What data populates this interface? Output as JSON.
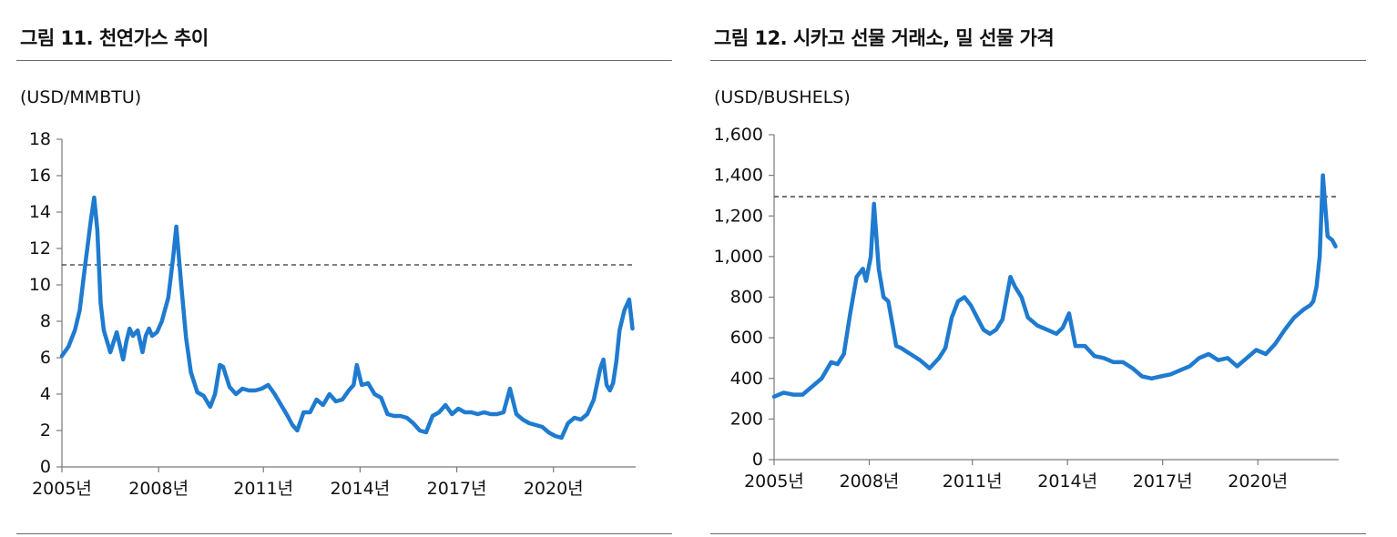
{
  "charts": [
    {
      "title": "그림 11. 천연가스 추이",
      "unit_label": "(USD/MMBTU)",
      "y_ticks": [
        "18",
        "16",
        "14",
        "12",
        "10",
        "8",
        "6",
        "4",
        "2",
        "0"
      ],
      "x_ticks": [
        "2005년",
        "2008년",
        "2011년",
        "2014년",
        "2017년",
        "2020년"
      ]
    },
    {
      "title": "그림 12. 시카고 선물 거래소, 밀 선물 가격",
      "unit_label": "(USD/BUSHELS)",
      "y_ticks": [
        "1,600",
        "1,400",
        "1,200",
        "1,000",
        "800",
        "600",
        "400",
        "200",
        "0"
      ],
      "x_ticks": [
        "2005년",
        "2008년",
        "2011년",
        "2014년",
        "2017년",
        "2020년"
      ]
    }
  ],
  "line_color": "#1f7bcf",
  "chart_data": [
    {
      "type": "line",
      "title": "그림 11. 천연가스 추이",
      "xlabel": "",
      "ylabel": "(USD/MMBTU)",
      "xlim": [
        2005.0,
        2022.8
      ],
      "ylim": [
        0,
        18
      ],
      "reference_line": 11.1,
      "grid": false,
      "series": [
        {
          "x": [
            2005.0,
            2005.2,
            2005.4,
            2005.55,
            2005.7,
            2005.9,
            2006.0,
            2006.1,
            2006.2,
            2006.3,
            2006.5,
            2006.7,
            2006.9,
            2007.0,
            2007.1,
            2007.2,
            2007.35,
            2007.5,
            2007.6,
            2007.7,
            2007.8,
            2007.95,
            2008.1,
            2008.3,
            2008.45,
            2008.55,
            2008.7,
            2008.85,
            2009.0,
            2009.2,
            2009.4,
            2009.6,
            2009.75,
            2009.9,
            2010.0,
            2010.2,
            2010.4,
            2010.6,
            2010.8,
            2011.0,
            2011.2,
            2011.4,
            2011.6,
            2011.8,
            2012.0,
            2012.15,
            2012.3,
            2012.5,
            2012.7,
            2012.9,
            2013.1,
            2013.3,
            2013.5,
            2013.7,
            2013.9,
            2014.05,
            2014.15,
            2014.3,
            2014.5,
            2014.7,
            2014.9,
            2015.1,
            2015.3,
            2015.5,
            2015.7,
            2015.9,
            2016.1,
            2016.3,
            2016.5,
            2016.7,
            2016.9,
            2017.1,
            2017.3,
            2017.5,
            2017.7,
            2017.9,
            2018.1,
            2018.3,
            2018.5,
            2018.7,
            2018.9,
            2019.1,
            2019.3,
            2019.5,
            2019.7,
            2019.9,
            2020.1,
            2020.3,
            2020.5,
            2020.7,
            2020.9,
            2021.1,
            2021.3,
            2021.5,
            2021.7,
            2021.8,
            2021.9,
            2022.0,
            2022.1,
            2022.2,
            2022.3,
            2022.45,
            2022.6,
            2022.7
          ],
          "y": [
            6.1,
            6.6,
            7.5,
            8.6,
            10.8,
            13.6,
            14.8,
            13.0,
            9.0,
            7.5,
            6.3,
            7.4,
            5.9,
            6.9,
            7.6,
            7.2,
            7.5,
            6.3,
            7.2,
            7.6,
            7.2,
            7.4,
            8.0,
            9.3,
            11.5,
            13.2,
            10.0,
            7.1,
            5.2,
            4.1,
            3.9,
            3.3,
            4.0,
            5.6,
            5.5,
            4.4,
            4.0,
            4.3,
            4.2,
            4.2,
            4.3,
            4.5,
            4.0,
            3.4,
            2.8,
            2.3,
            2.0,
            3.0,
            3.0,
            3.7,
            3.4,
            4.0,
            3.6,
            3.7,
            4.2,
            4.5,
            5.6,
            4.5,
            4.6,
            4.0,
            3.8,
            2.9,
            2.8,
            2.8,
            2.7,
            2.4,
            2.0,
            1.9,
            2.8,
            3.0,
            3.4,
            2.9,
            3.2,
            3.0,
            3.0,
            2.9,
            3.0,
            2.9,
            2.9,
            3.0,
            4.3,
            2.9,
            2.6,
            2.4,
            2.3,
            2.2,
            1.9,
            1.7,
            1.6,
            2.4,
            2.7,
            2.6,
            2.9,
            3.7,
            5.4,
            5.9,
            4.5,
            4.2,
            4.6,
            5.8,
            7.5,
            8.6,
            9.2,
            7.6
          ]
        }
      ]
    },
    {
      "type": "line",
      "title": "그림 12. 시카고 선물 거래소, 밀 선물 가격",
      "xlabel": "",
      "ylabel": "(USD/BUSHELS)",
      "xlim": [
        2005.0,
        2022.8
      ],
      "ylim": [
        0,
        1600
      ],
      "reference_line": 1295,
      "grid": false,
      "series": [
        {
          "x": [
            2005.0,
            2005.3,
            2005.6,
            2005.9,
            2006.2,
            2006.5,
            2006.8,
            2007.0,
            2007.2,
            2007.4,
            2007.6,
            2007.8,
            2007.9,
            2008.05,
            2008.15,
            2008.3,
            2008.45,
            2008.6,
            2008.75,
            2008.85,
            2009.0,
            2009.3,
            2009.6,
            2009.9,
            2010.2,
            2010.4,
            2010.6,
            2010.8,
            2011.0,
            2011.2,
            2011.4,
            2011.6,
            2011.8,
            2012.0,
            2012.2,
            2012.45,
            2012.6,
            2012.8,
            2013.0,
            2013.3,
            2013.6,
            2013.9,
            2014.1,
            2014.3,
            2014.5,
            2014.8,
            2015.1,
            2015.4,
            2015.7,
            2016.0,
            2016.3,
            2016.6,
            2016.9,
            2017.2,
            2017.5,
            2017.8,
            2018.1,
            2018.4,
            2018.7,
            2019.0,
            2019.3,
            2019.6,
            2019.9,
            2020.2,
            2020.5,
            2020.8,
            2021.1,
            2021.4,
            2021.7,
            2021.9,
            2022.0,
            2022.1,
            2022.2,
            2022.3,
            2022.45,
            2022.6,
            2022.7
          ],
          "y": [
            310,
            330,
            320,
            320,
            360,
            400,
            480,
            470,
            520,
            720,
            900,
            940,
            880,
            1000,
            1260,
            940,
            800,
            780,
            650,
            560,
            550,
            520,
            490,
            450,
            500,
            550,
            700,
            780,
            800,
            760,
            700,
            640,
            620,
            640,
            690,
            900,
            850,
            800,
            700,
            660,
            640,
            620,
            650,
            720,
            560,
            560,
            510,
            500,
            480,
            480,
            450,
            410,
            400,
            410,
            420,
            440,
            460,
            500,
            520,
            490,
            500,
            460,
            500,
            540,
            520,
            570,
            640,
            700,
            740,
            760,
            780,
            850,
            1000,
            1400,
            1100,
            1080,
            1050
          ]
        }
      ]
    }
  ]
}
